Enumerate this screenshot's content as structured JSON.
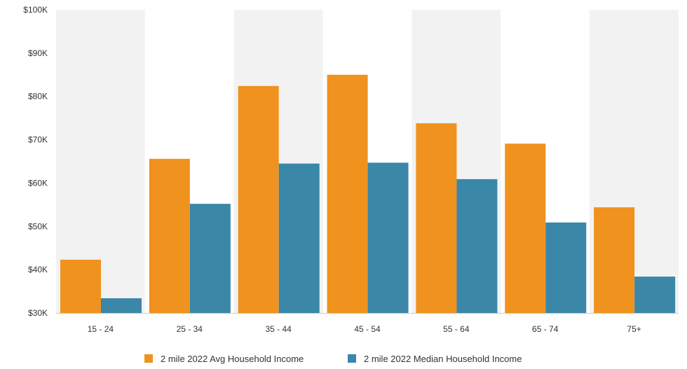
{
  "chart_data": {
    "type": "bar",
    "categories": [
      "15 - 24",
      "25 - 34",
      "35 - 44",
      "45 - 54",
      "55 - 64",
      "65 - 74",
      "75+"
    ],
    "series": [
      {
        "name": "2 mile 2022 Avg Household Income",
        "color": "#f0921e",
        "values": [
          42300,
          65600,
          82400,
          85000,
          73800,
          69100,
          54400
        ]
      },
      {
        "name": "2 mile 2022 Median Household Income",
        "color": "#3a87a8",
        "values": [
          33400,
          55200,
          64500,
          64700,
          60900,
          50900,
          38400
        ]
      }
    ],
    "ylim": [
      30000,
      100000
    ],
    "yticks": [
      {
        "value": 30000,
        "label": "$30K"
      },
      {
        "value": 40000,
        "label": "$40K"
      },
      {
        "value": 50000,
        "label": "$50K"
      },
      {
        "value": 60000,
        "label": "$60K"
      },
      {
        "value": 70000,
        "label": "$70K"
      },
      {
        "value": 80000,
        "label": "$80K"
      },
      {
        "value": 90000,
        "label": "$90K"
      },
      {
        "value": 100000,
        "label": "$100K"
      }
    ],
    "background_bands": [
      "#f2f2f2",
      "#ffffff"
    ],
    "legend_position": "bottom-center",
    "grid": false
  }
}
